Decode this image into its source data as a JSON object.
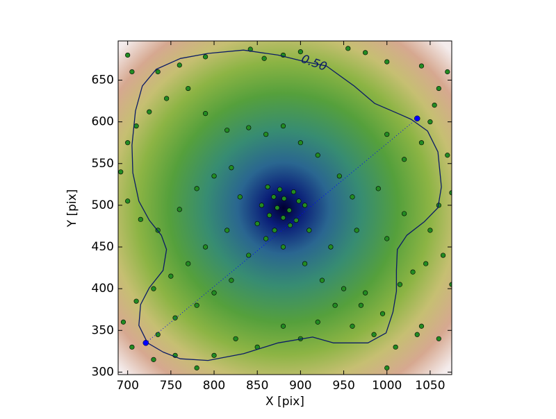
{
  "chart_data": {
    "type": "scatter",
    "xlabel": "X [pix]",
    "ylabel": "Y [pix]",
    "xlim": [
      689,
      1075
    ],
    "ylim": [
      297,
      697
    ],
    "xticks": [
      700,
      750,
      800,
      850,
      900,
      950,
      1000,
      1050
    ],
    "yticks": [
      300,
      350,
      400,
      450,
      500,
      550,
      600,
      650
    ],
    "series": [
      {
        "type": "scatter",
        "color": "#228b22",
        "x": [
          862,
          876,
          892,
          869,
          881,
          898,
          855,
          873,
          887,
          905,
          864,
          880,
          895,
          850,
          870,
          888,
          700,
          705,
          735,
          760,
          790,
          842,
          858,
          880,
          900,
          955,
          975,
          1000,
          1040,
          1070,
          1060,
          1055,
          1050,
          1040,
          1000,
          1020,
          1070,
          1075,
          1060,
          1020,
          990,
          960,
          945,
          920,
          900,
          880,
          860,
          840,
          815,
          790,
          770,
          745,
          725,
          710,
          700,
          692,
          700,
          715,
          735,
          760,
          780,
          800,
          820,
          830,
          815,
          790,
          770,
          750,
          730,
          710,
          695,
          705,
          735,
          755,
          780,
          800,
          820,
          840,
          860,
          880,
          905,
          925,
          950,
          970,
          995,
          1015,
          1030,
          1045,
          1075,
          1065,
          1050,
          1040,
          1035,
          1010,
          985,
          960,
          940,
          920,
          900,
          880,
          850,
          825,
          800,
          780,
          755,
          730,
          1000,
          1060,
          975,
          935,
          910,
          965,
          1000
        ],
        "y": [
          522,
          519,
          516,
          510,
          508,
          505,
          500,
          497,
          494,
          500,
          488,
          485,
          482,
          478,
          470,
          476,
          680,
          660,
          660,
          668,
          678,
          687,
          676,
          680,
          684,
          688,
          683,
          672,
          667,
          660,
          640,
          620,
          600,
          575,
          585,
          555,
          560,
          515,
          500,
          490,
          520,
          510,
          535,
          560,
          575,
          595,
          585,
          593,
          590,
          610,
          640,
          628,
          612,
          595,
          575,
          540,
          505,
          483,
          470,
          495,
          520,
          535,
          545,
          510,
          470,
          450,
          430,
          415,
          400,
          385,
          360,
          330,
          345,
          365,
          380,
          395,
          410,
          440,
          460,
          450,
          430,
          410,
          400,
          380,
          370,
          405,
          420,
          430,
          405,
          440,
          470,
          355,
          345,
          330,
          345,
          355,
          380,
          360,
          340,
          355,
          330,
          340,
          320,
          305,
          320,
          315,
          305,
          340,
          395,
          450,
          470,
          470,
          460
        ]
      },
      {
        "type": "line",
        "color": "#0a1a66",
        "label": "0.50",
        "x": [
          723,
          713,
          715,
          725,
          741,
          745,
          739,
          725,
          713,
          706,
          705,
          709,
          717,
          733,
          761,
          793,
          834,
          874,
          906,
          930,
          962,
          986,
          1015,
          1028,
          1047,
          1059,
          1063,
          1059,
          1043,
          1023,
          1012,
          1011,
          1011,
          1007,
          999,
          978,
          938,
          914,
          874,
          834,
          793,
          761,
          741,
          723
        ],
        "y": [
          335,
          356,
          381,
          401,
          422,
          447,
          464,
          482,
          505,
          539,
          572,
          613,
          643,
          663,
          676,
          682,
          686,
          680,
          672,
          667,
          643,
          622,
          609,
          603,
          589,
          564,
          522,
          497,
          480,
          464,
          447,
          422,
          397,
          372,
          347,
          335,
          335,
          342,
          335,
          322,
          314,
          316,
          324,
          335
        ]
      },
      {
        "type": "segment",
        "color": "#0000ff",
        "x": [
          721,
          1035
        ],
        "y": [
          335,
          604
        ]
      }
    ]
  }
}
